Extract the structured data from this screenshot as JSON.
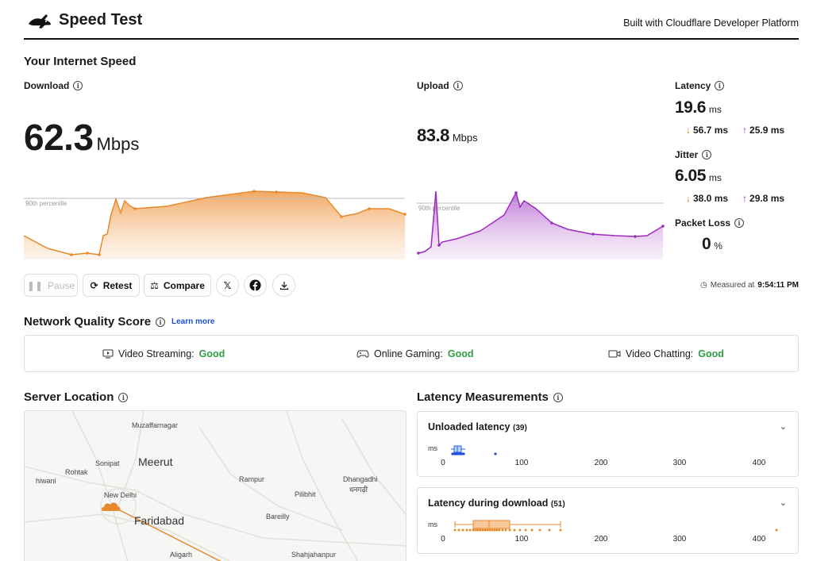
{
  "header": {
    "app_title": "Speed Test",
    "built_with": "Built with Cloudflare Developer Platform",
    "logo_icon": "rabbit-logo-icon"
  },
  "internet_speed": {
    "title": "Your Internet Speed",
    "download": {
      "label": "Download",
      "value": "62.3",
      "unit": "Mbps"
    },
    "upload": {
      "label": "Upload",
      "value": "83.8",
      "unit": "Mbps"
    },
    "percentile_label": "90th percentile",
    "latency": {
      "label": "Latency",
      "value": "19.6",
      "unit": "ms",
      "down": "56.7 ms",
      "up": "25.9 ms"
    },
    "jitter": {
      "label": "Jitter",
      "value": "6.05",
      "unit": "ms",
      "down": "38.0 ms",
      "up": "29.8 ms"
    },
    "packet_loss": {
      "label": "Packet Loss",
      "value": "0",
      "unit": "%"
    }
  },
  "toolbar": {
    "pause_label": "Pause",
    "retest_label": "Retest",
    "compare_label": "Compare",
    "x_label": "𝕏",
    "measured_prefix": "Measured at",
    "measured_time": "9:54:11 PM"
  },
  "network_quality": {
    "title": "Network Quality Score",
    "learn_more": "Learn more",
    "items": [
      {
        "label": "Video Streaming:",
        "value": "Good",
        "icon": "video-streaming-icon"
      },
      {
        "label": "Online Gaming:",
        "value": "Good",
        "icon": "gamepad-icon"
      },
      {
        "label": "Video Chatting:",
        "value": "Good",
        "icon": "video-camera-icon"
      }
    ]
  },
  "server_location": {
    "title": "Server Location",
    "cities": [
      "Muzaffarnagar",
      "Meerut",
      "Sonipat",
      "Rohtak",
      "hiwani",
      "New Delhi",
      "Faridabad",
      "Rampur",
      "Dhangadhi",
      "धनगढ़ी",
      "Pilibhit",
      "Bareilly",
      "Aligarh",
      "Shahjahanpur"
    ]
  },
  "latency_measurements": {
    "title": "Latency Measurements",
    "unloaded": {
      "label": "Unloaded latency",
      "count": "(39)",
      "unit": "ms"
    },
    "during_download": {
      "label": "Latency during download",
      "count": "(51)",
      "unit": "ms"
    },
    "axis_ticks": [
      "0",
      "100",
      "200",
      "300",
      "400"
    ]
  },
  "colors": {
    "download": "#e8892c",
    "upload": "#9c2bbd",
    "good": "#2f9e44",
    "link": "#1d4ed8"
  }
}
